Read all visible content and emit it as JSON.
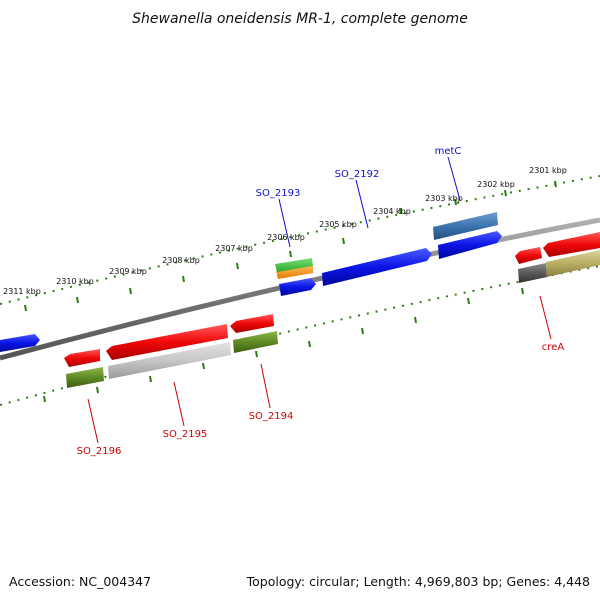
{
  "title": "Shewanella oneidensis MR-1, complete genome",
  "footer": {
    "accession": "Accession: NC_004347",
    "topology": "Topology: circular; Length: 4,969,803 bp; Genes: 4,448"
  },
  "colors": {
    "backbone": "#777777",
    "tick": "#2e7d16",
    "forward_label": "#1010cc",
    "reverse_label": "#cc0000"
  },
  "scale": {
    "outer_ticks": [
      "2301 kbp",
      "2302 kbp",
      "2303 kbp",
      "2304 kbp",
      "2305 kbp",
      "2306 kbp",
      "2307 kbp",
      "2308 kbp",
      "2309 kbp",
      "2310 kbp",
      "2311 kbp"
    ]
  },
  "gene_labels": {
    "forward": [
      "metC",
      "SO_2192",
      "SO_2193"
    ],
    "reverse": [
      "creA",
      "SO_2194",
      "SO_2195",
      "SO_2196"
    ]
  }
}
